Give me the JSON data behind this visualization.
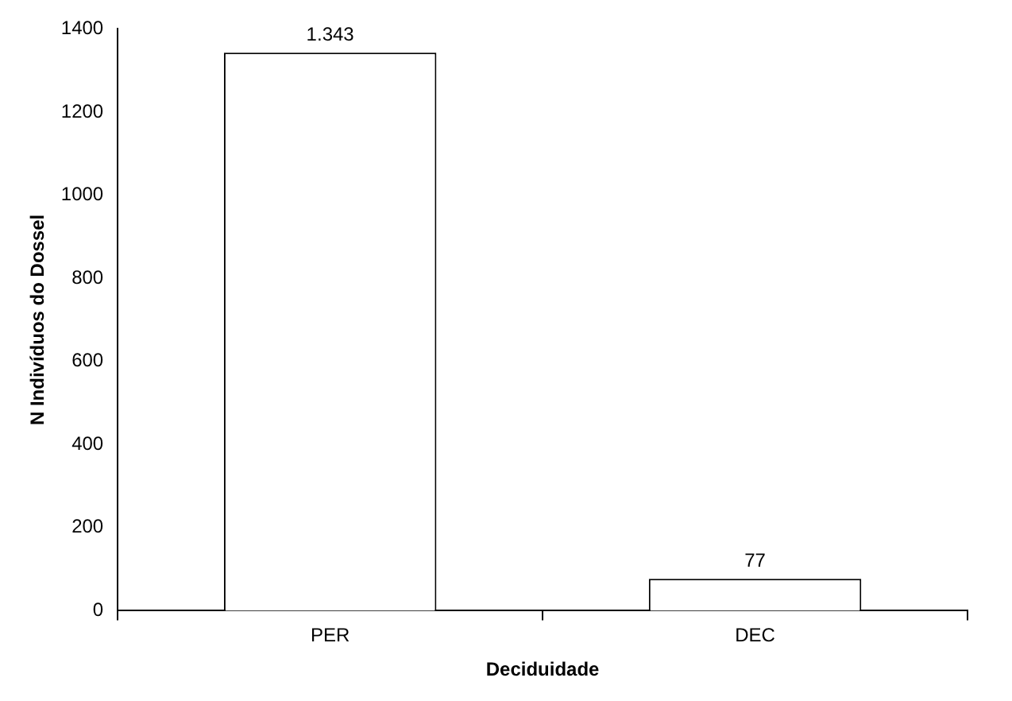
{
  "chart_data": {
    "type": "bar",
    "xlabel": "Deciduidade",
    "ylabel": "N Indivíduos do Dossel",
    "categories": [
      "PER",
      "DEC"
    ],
    "values": [
      1343,
      77
    ],
    "value_labels": [
      "1.343",
      "77"
    ],
    "color": "#ffffff",
    "ylim": [
      0,
      1400
    ],
    "yticks": [
      0,
      200,
      400,
      600,
      800,
      1000,
      1200,
      1400
    ],
    "grid": false,
    "legend": false
  }
}
